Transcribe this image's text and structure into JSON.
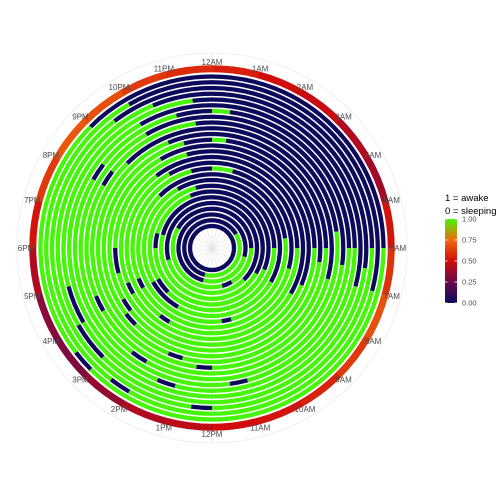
{
  "chart_data": {
    "type": "radial-heatmap",
    "title": "",
    "angular_axis": {
      "labels": [
        "12AM",
        "1AM",
        "2AM",
        "3AM",
        "4AM",
        "5AM",
        "6AM",
        "7AM",
        "8AM",
        "9AM",
        "10AM",
        "11AM",
        "12PM",
        "1PM",
        "2PM",
        "3PM",
        "4PM",
        "5PM",
        "6PM",
        "7PM",
        "8PM",
        "9PM",
        "10PM",
        "11PM"
      ],
      "range_hours": [
        0,
        24
      ],
      "direction": "clockwise",
      "zero_at": "top"
    },
    "grid": true,
    "legend": {
      "title_lines": [
        "1 = awake",
        "0 = sleeping"
      ],
      "ticks": [
        "1.00",
        "0.75",
        "0.50",
        "0.25",
        "0.00"
      ],
      "tick_values": [
        1.0,
        0.75,
        0.5,
        0.25,
        0.0
      ],
      "placement": "right"
    },
    "color_scale": {
      "stops": [
        {
          "value": 0.0,
          "color": "#0d0a5c"
        },
        {
          "value": 0.25,
          "color": "#6b0a4a"
        },
        {
          "value": 0.5,
          "color": "#d10c0c"
        },
        {
          "value": 0.75,
          "color": "#f06a0c"
        },
        {
          "value": 1.0,
          "color": "#46f50a"
        }
      ]
    },
    "rings_inner_to_outer": [
      [
        [
          0,
          24,
          0
        ]
      ],
      [
        [
          0,
          4,
          0
        ],
        [
          4,
          13,
          1
        ],
        [
          13,
          24,
          0
        ]
      ],
      [
        [
          0,
          7,
          0
        ],
        [
          7,
          13,
          1
        ],
        [
          13,
          24,
          0
        ]
      ],
      [
        [
          0,
          6,
          0
        ],
        [
          6,
          10,
          1
        ],
        [
          10,
          11,
          0
        ],
        [
          11,
          20,
          1
        ],
        [
          20,
          24,
          0
        ]
      ],
      [
        [
          0,
          9,
          0
        ],
        [
          9,
          17,
          1
        ],
        [
          17,
          24,
          0
        ]
      ],
      [
        [
          0,
          8,
          0
        ],
        [
          8,
          19,
          1
        ],
        [
          19,
          24,
          0
        ]
      ],
      [
        [
          0,
          7.5,
          0
        ],
        [
          7.5,
          18,
          1
        ],
        [
          18,
          19,
          0
        ],
        [
          19,
          22.5,
          1
        ],
        [
          22.5,
          24,
          0
        ]
      ],
      [
        [
          0,
          6,
          0
        ],
        [
          6,
          15,
          1
        ],
        [
          15,
          16,
          0
        ],
        [
          16,
          23,
          1
        ],
        [
          23,
          24,
          0
        ]
      ],
      [
        [
          0,
          8,
          0
        ],
        [
          8,
          14,
          1
        ],
        [
          14,
          16,
          0
        ],
        [
          16,
          22,
          1
        ],
        [
          22,
          24,
          0
        ]
      ],
      [
        [
          0,
          5.5,
          0
        ],
        [
          5.5,
          11,
          1
        ],
        [
          11,
          11.5,
          0
        ],
        [
          11.5,
          21,
          1
        ],
        [
          21,
          24,
          0
        ]
      ],
      [
        [
          0,
          1,
          1
        ],
        [
          1,
          7,
          0
        ],
        [
          7,
          16,
          1
        ],
        [
          16,
          16.5,
          0
        ],
        [
          16.5,
          23,
          1
        ],
        [
          23,
          24,
          0
        ]
      ],
      [
        [
          0,
          6,
          0
        ],
        [
          6,
          14,
          1
        ],
        [
          14,
          14.5,
          0
        ],
        [
          14.5,
          22,
          1
        ],
        [
          22,
          24,
          0
        ]
      ],
      [
        [
          0,
          8,
          0
        ],
        [
          8,
          16,
          1
        ],
        [
          16,
          16.5,
          0
        ],
        [
          16.5,
          21.5,
          1
        ],
        [
          21.5,
          24,
          0
        ]
      ],
      [
        [
          0,
          7.5,
          0
        ],
        [
          7.5,
          17,
          1
        ],
        [
          17,
          18,
          0
        ],
        [
          18,
          23,
          1
        ],
        [
          23,
          24,
          0
        ]
      ],
      [
        [
          0,
          6,
          0
        ],
        [
          6,
          15.5,
          1
        ],
        [
          15.5,
          16,
          0
        ],
        [
          16,
          22,
          1
        ],
        [
          22,
          24,
          0
        ]
      ],
      [
        [
          0,
          0.5,
          1
        ],
        [
          0.5,
          6.5,
          0
        ],
        [
          6.5,
          15,
          1
        ],
        [
          15,
          15.5,
          0
        ],
        [
          15.5,
          23,
          1
        ],
        [
          23,
          24,
          0
        ]
      ],
      [
        [
          0,
          6,
          0
        ],
        [
          6,
          13,
          1
        ],
        [
          13,
          13.5,
          0
        ],
        [
          13.5,
          22.5,
          1
        ],
        [
          22.5,
          24,
          0
        ]
      ],
      [
        [
          0,
          7,
          0
        ],
        [
          7,
          12,
          1
        ],
        [
          12,
          12.5,
          0
        ],
        [
          12.5,
          21,
          1
        ],
        [
          21,
          24,
          0
        ]
      ],
      [
        [
          0,
          5.5,
          0
        ],
        [
          5.5,
          16,
          1
        ],
        [
          16,
          16.5,
          0
        ],
        [
          16.5,
          20,
          1
        ],
        [
          20,
          20.5,
          0
        ],
        [
          20.5,
          23.5,
          1
        ],
        [
          23.5,
          24,
          0
        ]
      ],
      [
        [
          0,
          6.5,
          0
        ],
        [
          6.5,
          14,
          1
        ],
        [
          14,
          14.5,
          0
        ],
        [
          14.5,
          22,
          1
        ],
        [
          22,
          24,
          0
        ]
      ],
      [
        [
          0,
          0.5,
          1
        ],
        [
          0.5,
          6,
          0
        ],
        [
          6,
          11,
          1
        ],
        [
          11,
          11.5,
          0
        ],
        [
          11.5,
          20,
          1
        ],
        [
          20,
          20.5,
          0
        ],
        [
          20.5,
          23,
          1
        ],
        [
          23,
          24,
          0
        ]
      ],
      [
        [
          0,
          6,
          0
        ],
        [
          6,
          13,
          1
        ],
        [
          13,
          13.5,
          0
        ],
        [
          13.5,
          22,
          1
        ],
        [
          22,
          24,
          0
        ]
      ],
      [
        [
          0,
          7,
          0
        ],
        [
          7,
          16,
          1
        ],
        [
          16,
          17,
          0
        ],
        [
          17,
          23.5,
          1
        ],
        [
          23.5,
          24,
          0
        ]
      ],
      [
        [
          0,
          6.5,
          0
        ],
        [
          6.5,
          15,
          1
        ],
        [
          15,
          16,
          0
        ],
        [
          16,
          22.5,
          1
        ],
        [
          22.5,
          24,
          0
        ]
      ],
      [
        [
          0,
          6,
          0
        ],
        [
          6,
          12,
          1
        ],
        [
          12,
          12.5,
          0
        ],
        [
          12.5,
          21.5,
          1
        ],
        [
          21.5,
          24,
          0
        ]
      ],
      [
        [
          0,
          7,
          0
        ],
        [
          7,
          14,
          1
        ],
        [
          14,
          14.5,
          0
        ],
        [
          14.5,
          22,
          1
        ],
        [
          22,
          24,
          0
        ]
      ],
      [
        [
          0,
          6,
          0
        ],
        [
          6,
          15,
          1
        ],
        [
          15,
          15.5,
          0
        ],
        [
          15.5,
          21,
          1
        ],
        [
          21,
          24,
          0
        ]
      ]
    ],
    "outer_ring_average_values": [
      0.55,
      0.5,
      0.48,
      0.42,
      0.38,
      0.52,
      0.6,
      0.68,
      0.62,
      0.56,
      0.52,
      0.5,
      0.45,
      0.42,
      0.35,
      0.3,
      0.32,
      0.42,
      0.52,
      0.62,
      0.7,
      0.68,
      0.62,
      0.58
    ]
  }
}
